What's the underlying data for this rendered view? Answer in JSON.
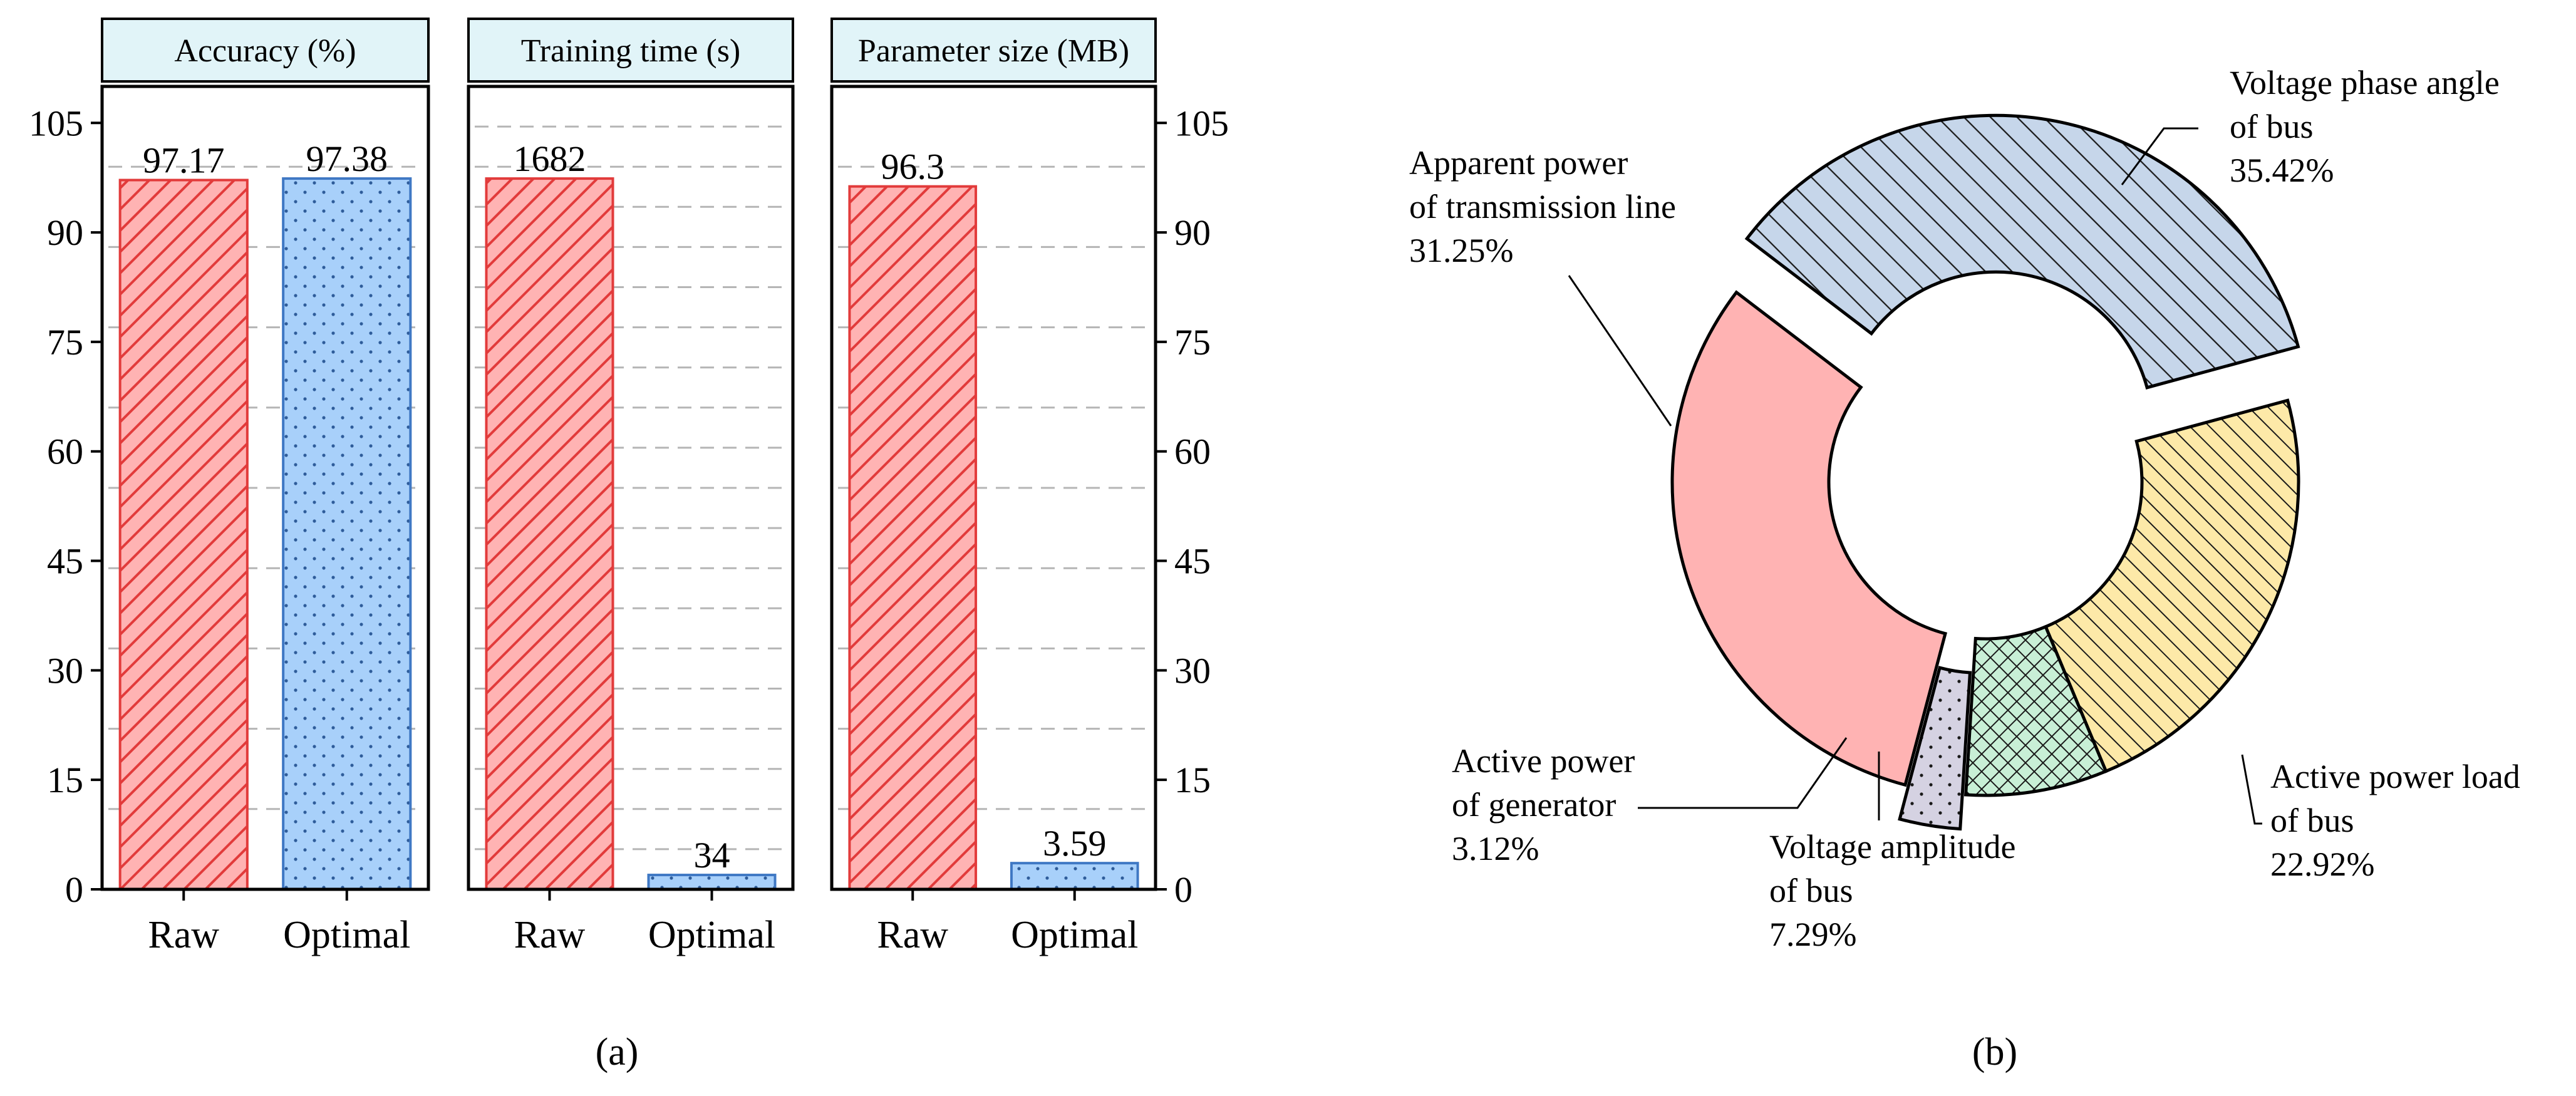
{
  "figure_labels": {
    "a": "(a)",
    "b": "(b)"
  },
  "colors": {
    "raw_fill": "#ffb3b3",
    "raw_edge": "#e23b3b",
    "opt_fill": "#a8d0fa",
    "opt_edge": "#3f78c4",
    "header_fill": "#e1f4f8",
    "slice_phase": "#c6d6ea",
    "slice_apparent": "#ffb3b3",
    "slice_gen": "#d5d2e2",
    "slice_amp": "#c8efd6",
    "slice_load": "#fde9a8"
  },
  "chart_data": [
    {
      "type": "bar",
      "title": "Accuracy (%)",
      "categories": [
        "Raw",
        "Optimal"
      ],
      "values": [
        97.17,
        97.38
      ],
      "value_labels": [
        "97.17",
        "97.38"
      ],
      "ylim": [
        0,
        110
      ],
      "yticks": [
        "0",
        "15",
        "30",
        "45",
        "60",
        "75",
        "90",
        "105"
      ],
      "grid": true
    },
    {
      "type": "bar",
      "title": "Training time (s)",
      "categories": [
        "Raw",
        "Optimal"
      ],
      "values": [
        1682,
        34
      ],
      "value_labels": [
        "1682",
        "34"
      ],
      "ylim": [
        0,
        1900
      ],
      "grid": true
    },
    {
      "type": "bar",
      "title": "Parameter size (MB)",
      "categories": [
        "Raw",
        "Optimal"
      ],
      "values": [
        96.3,
        3.59
      ],
      "value_labels": [
        "96.3",
        "3.59"
      ],
      "ylim": [
        0,
        110
      ],
      "yticks": [
        "0",
        "15",
        "30",
        "45",
        "60",
        "75",
        "90",
        "105"
      ],
      "grid": true
    },
    {
      "type": "pie",
      "variant": "donut",
      "slices": [
        {
          "name": "Voltage phase angle of bus",
          "label_lines": [
            "Voltage phase angle",
            "of bus"
          ],
          "value": 35.42,
          "pct": "35.42%",
          "exploded": true
        },
        {
          "name": "Active power load of bus",
          "label_lines": [
            "Active power load",
            "of bus"
          ],
          "value": 22.92,
          "pct": "22.92%",
          "exploded": false
        },
        {
          "name": "Voltage amplitude of bus",
          "label_lines": [
            "Voltage amplitude",
            "of bus"
          ],
          "value": 7.29,
          "pct": "7.29%",
          "exploded": false
        },
        {
          "name": "Active power of generator",
          "label_lines": [
            "Active power",
            "of generator"
          ],
          "value": 3.12,
          "pct": "3.12%",
          "exploded": true
        },
        {
          "name": "Apparent power of transmission line",
          "label_lines": [
            "Apparent power",
            "of transmission line"
          ],
          "value": 31.25,
          "pct": "31.25%",
          "exploded": false
        }
      ]
    }
  ]
}
